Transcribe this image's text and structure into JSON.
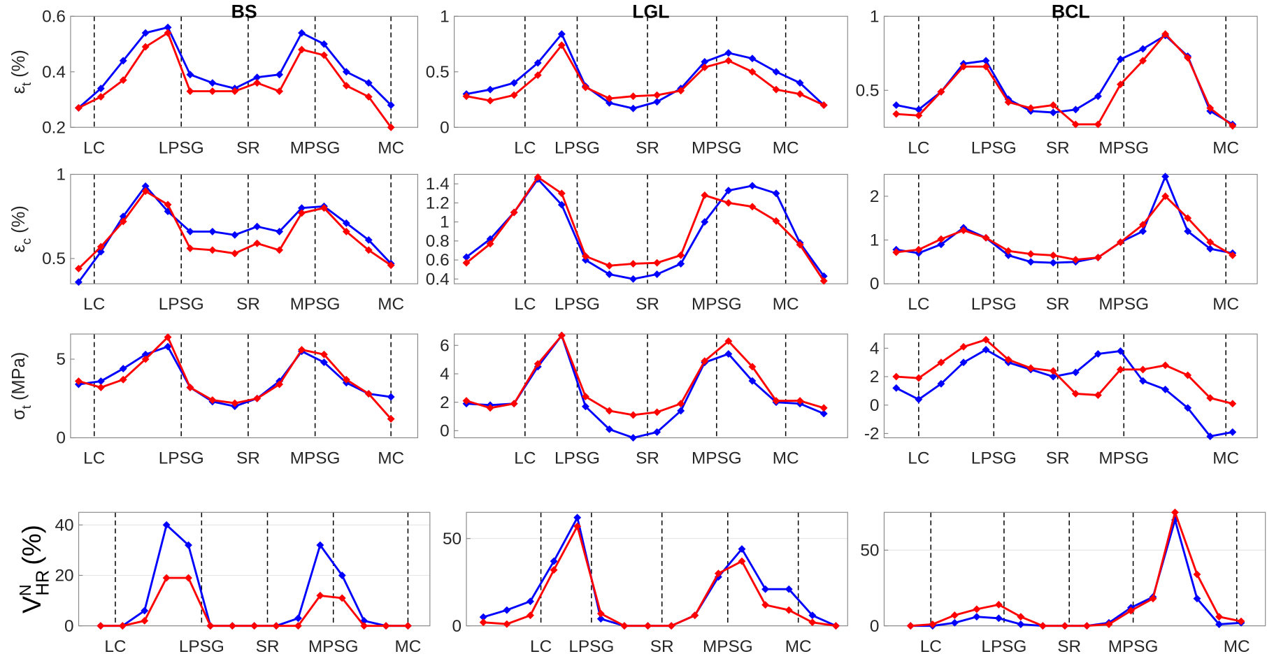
{
  "chart_data": [
    {
      "type": "line",
      "title": "BS",
      "ylabel": {
        "base": "ε",
        "sub": "t",
        "unit": "(%)"
      },
      "x": [
        1,
        2,
        3,
        4,
        5,
        6,
        7,
        8,
        9,
        10,
        11,
        12,
        13,
        14,
        15
      ],
      "xlim": [
        0.64,
        16.2
      ],
      "xticks": [
        {
          "value": 1.7,
          "label": "LC"
        },
        {
          "value": 5.6,
          "label": "LPSG"
        },
        {
          "value": 8.6,
          "label": "SR"
        },
        {
          "value": 11.6,
          "label": "MPSG"
        },
        {
          "value": 15,
          "label": "MC"
        }
      ],
      "ylim": [
        0.2,
        0.6
      ],
      "yticks": [
        0.2,
        0.4,
        0.6
      ],
      "grid": false,
      "series": [
        {
          "color": "#0000ff",
          "values": [
            0.27,
            0.34,
            0.44,
            0.54,
            0.56,
            0.39,
            0.36,
            0.34,
            0.38,
            0.39,
            0.54,
            0.5,
            0.4,
            0.36,
            0.28
          ]
        },
        {
          "color": "#ff0000",
          "values": [
            0.27,
            0.31,
            0.37,
            0.49,
            0.54,
            0.33,
            0.33,
            0.33,
            0.36,
            0.33,
            0.48,
            0.46,
            0.35,
            0.31,
            0.2
          ]
        }
      ]
    },
    {
      "type": "line",
      "title": "LGL",
      "x": [
        1,
        2,
        3,
        4,
        5,
        6,
        7,
        8,
        9,
        10,
        11,
        12,
        13,
        14,
        15,
        16
      ],
      "xlim": [
        0.49,
        17
      ],
      "xticks": [
        {
          "value": 3.46,
          "label": "LC"
        },
        {
          "value": 5.65,
          "label": "LPSG"
        },
        {
          "value": 8.6,
          "label": "SR"
        },
        {
          "value": 11.5,
          "label": "MPSG"
        },
        {
          "value": 14.4,
          "label": "MC"
        }
      ],
      "ylim": [
        0,
        1
      ],
      "yticks": [
        0,
        0.5,
        1
      ],
      "grid": false,
      "series": [
        {
          "color": "#0000ff",
          "values": [
            0.3,
            0.34,
            0.4,
            0.58,
            0.84,
            0.37,
            0.22,
            0.17,
            0.23,
            0.35,
            0.59,
            0.67,
            0.62,
            0.5,
            0.4,
            0.2
          ]
        },
        {
          "color": "#ff0000",
          "values": [
            0.28,
            0.24,
            0.29,
            0.47,
            0.74,
            0.36,
            0.26,
            0.28,
            0.29,
            0.33,
            0.54,
            0.6,
            0.5,
            0.34,
            0.3,
            0.2
          ]
        }
      ]
    },
    {
      "type": "line",
      "title": "BCL",
      "x": [
        1,
        2,
        3,
        4,
        5,
        6,
        7,
        8,
        9,
        10,
        11,
        12,
        13,
        14,
        15,
        16
      ],
      "xlim": [
        0.46,
        17.1
      ],
      "xticks": [
        {
          "value": 2,
          "label": "LC"
        },
        {
          "value": 5.35,
          "label": "LPSG"
        },
        {
          "value": 8.2,
          "label": "SR"
        },
        {
          "value": 11.15,
          "label": "MPSG"
        },
        {
          "value": 15.7,
          "label": "MC"
        }
      ],
      "ylim": [
        0.25,
        1
      ],
      "yticks": [
        0.5,
        1
      ],
      "grid": false,
      "series": [
        {
          "color": "#0000ff",
          "values": [
            0.4,
            0.37,
            0.49,
            0.68,
            0.7,
            0.44,
            0.36,
            0.35,
            0.37,
            0.46,
            0.71,
            0.78,
            0.87,
            0.73,
            0.36,
            0.27
          ]
        },
        {
          "color": "#ff0000",
          "values": [
            0.34,
            0.33,
            0.49,
            0.66,
            0.66,
            0.42,
            0.38,
            0.4,
            0.27,
            0.27,
            0.54,
            0.7,
            0.88,
            0.72,
            0.38,
            0.26
          ]
        }
      ]
    },
    {
      "type": "line",
      "ylabel": {
        "base": "ε",
        "sub": "c",
        "unit": "(%)"
      },
      "x": [
        1,
        2,
        3,
        4,
        5,
        6,
        7,
        8,
        9,
        10,
        11,
        12,
        13,
        14,
        15
      ],
      "xlim": [
        0.64,
        16.2
      ],
      "xticks": [
        {
          "value": 1.7,
          "label": "LC"
        },
        {
          "value": 5.6,
          "label": "LPSG"
        },
        {
          "value": 8.6,
          "label": "SR"
        },
        {
          "value": 11.6,
          "label": "MPSG"
        },
        {
          "value": 15,
          "label": "MC"
        }
      ],
      "ylim": [
        0.35,
        1
      ],
      "yticks": [
        0.5,
        1
      ],
      "grid": false,
      "series": [
        {
          "color": "#0000ff",
          "values": [
            0.36,
            0.54,
            0.75,
            0.93,
            0.78,
            0.66,
            0.66,
            0.64,
            0.69,
            0.66,
            0.8,
            0.81,
            0.71,
            0.61,
            0.47
          ]
        },
        {
          "color": "#ff0000",
          "values": [
            0.44,
            0.57,
            0.72,
            0.9,
            0.82,
            0.56,
            0.55,
            0.53,
            0.59,
            0.55,
            0.77,
            0.8,
            0.66,
            0.55,
            0.46
          ]
        }
      ]
    },
    {
      "type": "line",
      "x": [
        1,
        2,
        3,
        4,
        5,
        6,
        7,
        8,
        9,
        10,
        11,
        12,
        13,
        14,
        15,
        16
      ],
      "xlim": [
        0.49,
        17
      ],
      "xticks": [
        {
          "value": 3.46,
          "label": "LC"
        },
        {
          "value": 5.65,
          "label": "LPSG"
        },
        {
          "value": 8.6,
          "label": "SR"
        },
        {
          "value": 11.5,
          "label": "MPSG"
        },
        {
          "value": 14.4,
          "label": "MC"
        }
      ],
      "ylim": [
        0.35,
        1.5
      ],
      "yticks": [
        0.4,
        0.6,
        0.8,
        1,
        1.2,
        1.4
      ],
      "grid": false,
      "series": [
        {
          "color": "#0000ff",
          "values": [
            0.63,
            0.82,
            1.1,
            1.45,
            1.18,
            0.6,
            0.45,
            0.4,
            0.45,
            0.56,
            1,
            1.33,
            1.38,
            1.3,
            0.78,
            0.43
          ]
        },
        {
          "color": "#ff0000",
          "values": [
            0.57,
            0.77,
            1.1,
            1.47,
            1.3,
            0.64,
            0.54,
            0.56,
            0.57,
            0.65,
            1.28,
            1.2,
            1.16,
            1.01,
            0.76,
            0.38
          ]
        }
      ]
    },
    {
      "type": "line",
      "x": [
        1,
        2,
        3,
        4,
        5,
        6,
        7,
        8,
        9,
        10,
        11,
        12,
        13,
        14,
        15,
        16
      ],
      "xlim": [
        0.46,
        17.1
      ],
      "xticks": [
        {
          "value": 2,
          "label": "LC"
        },
        {
          "value": 5.35,
          "label": "LPSG"
        },
        {
          "value": 8.2,
          "label": "SR"
        },
        {
          "value": 11.15,
          "label": "MPSG"
        },
        {
          "value": 15.7,
          "label": "MC"
        }
      ],
      "ylim": [
        0,
        2.5
      ],
      "yticks": [
        0,
        1,
        2
      ],
      "grid": false,
      "series": [
        {
          "color": "#0000ff",
          "values": [
            0.78,
            0.7,
            0.9,
            1.28,
            1.05,
            0.65,
            0.5,
            0.48,
            0.5,
            0.6,
            0.95,
            1.2,
            2.45,
            1.2,
            0.8,
            0.7
          ]
        },
        {
          "color": "#ff0000",
          "values": [
            0.72,
            0.78,
            1.02,
            1.22,
            1.05,
            0.75,
            0.68,
            0.65,
            0.55,
            0.6,
            0.95,
            1.35,
            2,
            1.5,
            0.95,
            0.65
          ]
        }
      ]
    },
    {
      "type": "line",
      "ylabel": {
        "base": "σ",
        "sub": "t",
        "unit": "(MPa)"
      },
      "x": [
        1,
        2,
        3,
        4,
        5,
        6,
        7,
        8,
        9,
        10,
        11,
        12,
        13,
        14,
        15
      ],
      "xlim": [
        0.64,
        16.2
      ],
      "xticks": [
        {
          "value": 1.7,
          "label": "LC"
        },
        {
          "value": 5.6,
          "label": "LPSG"
        },
        {
          "value": 8.6,
          "label": "SR"
        },
        {
          "value": 11.6,
          "label": "MPSG"
        },
        {
          "value": 15,
          "label": "MC"
        }
      ],
      "ylim": [
        0,
        6.6
      ],
      "yticks": [
        0,
        5
      ],
      "grid": false,
      "series": [
        {
          "color": "#0000ff",
          "values": [
            3.4,
            3.6,
            4.4,
            5.3,
            5.8,
            3.2,
            2.3,
            2,
            2.5,
            3.6,
            5.5,
            4.8,
            3.5,
            2.8,
            2.6
          ]
        },
        {
          "color": "#ff0000",
          "values": [
            3.6,
            3.2,
            3.7,
            5,
            6.4,
            3.2,
            2.4,
            2.2,
            2.5,
            3.4,
            5.6,
            5.3,
            3.7,
            2.8,
            1.2
          ]
        }
      ]
    },
    {
      "type": "line",
      "x": [
        1,
        2,
        3,
        4,
        5,
        6,
        7,
        8,
        9,
        10,
        11,
        12,
        13,
        14,
        15,
        16
      ],
      "xlim": [
        0.49,
        17
      ],
      "xticks": [
        {
          "value": 3.46,
          "label": "LC"
        },
        {
          "value": 5.65,
          "label": "LPSG"
        },
        {
          "value": 8.6,
          "label": "SR"
        },
        {
          "value": 11.5,
          "label": "MPSG"
        },
        {
          "value": 14.4,
          "label": "MC"
        }
      ],
      "ylim": [
        -0.5,
        6.8
      ],
      "yticks": [
        0,
        2,
        4,
        6
      ],
      "grid": false,
      "series": [
        {
          "color": "#0000ff",
          "values": [
            1.9,
            1.8,
            1.9,
            4.5,
            6.7,
            1.7,
            0.1,
            -0.5,
            -0.1,
            1.4,
            4.8,
            5.4,
            3.5,
            2,
            1.9,
            1.2
          ]
        },
        {
          "color": "#ff0000",
          "values": [
            2.1,
            1.6,
            1.9,
            4.7,
            6.7,
            2.4,
            1.4,
            1.1,
            1.3,
            1.9,
            4.9,
            6.3,
            4.5,
            2.1,
            2.1,
            1.6
          ]
        }
      ]
    },
    {
      "type": "line",
      "x": [
        1,
        2,
        3,
        4,
        5,
        6,
        7,
        8,
        9,
        10,
        11,
        12,
        13,
        14,
        15,
        16
      ],
      "xlim": [
        0.46,
        17.1
      ],
      "xticks": [
        {
          "value": 2,
          "label": "LC"
        },
        {
          "value": 5.35,
          "label": "LPSG"
        },
        {
          "value": 8.2,
          "label": "SR"
        },
        {
          "value": 11.15,
          "label": "MPSG"
        },
        {
          "value": 15.7,
          "label": "MC"
        }
      ],
      "ylim": [
        -2.3,
        5
      ],
      "yticks": [
        -2,
        0,
        2,
        4
      ],
      "grid": false,
      "series": [
        {
          "color": "#0000ff",
          "values": [
            1.2,
            0.4,
            1.5,
            3,
            3.9,
            3,
            2.5,
            2,
            2.3,
            3.6,
            3.8,
            1.7,
            1.1,
            -0.2,
            -2.2,
            -1.9
          ]
        },
        {
          "color": "#ff0000",
          "values": [
            2,
            1.9,
            3,
            4.1,
            4.6,
            3.2,
            2.6,
            2.4,
            0.8,
            0.7,
            2.5,
            2.5,
            2.8,
            2.1,
            0.5,
            0.1
          ]
        }
      ]
    },
    {
      "type": "line",
      "ylabel": {
        "base": "V",
        "sup": "N",
        "sub": "HR",
        "unit": "(%)"
      },
      "x": [
        1,
        2,
        3,
        4,
        5,
        6,
        7,
        8,
        9,
        10,
        11,
        12,
        13,
        14,
        15
      ],
      "xlim": [
        0,
        16
      ],
      "xticks": [
        {
          "value": 1.67,
          "label": "LC"
        },
        {
          "value": 5.6,
          "label": "LPSG"
        },
        {
          "value": 8.6,
          "label": "SR"
        },
        {
          "value": 11.6,
          "label": "MPSG"
        },
        {
          "value": 15,
          "label": "MC"
        }
      ],
      "ylim": [
        0,
        45
      ],
      "yticks": [
        0,
        20,
        40
      ],
      "grid": true,
      "series": [
        {
          "color": "#0000ff",
          "values": [
            0,
            0,
            6,
            40,
            32,
            0,
            0,
            0,
            0,
            3,
            32,
            20,
            2,
            0,
            0
          ]
        },
        {
          "color": "#ff0000",
          "values": [
            0,
            0,
            2,
            19,
            19,
            0,
            0,
            0,
            0,
            0,
            12,
            11,
            0,
            0,
            0
          ]
        }
      ]
    },
    {
      "type": "line",
      "x": [
        1,
        2,
        3,
        4,
        5,
        6,
        7,
        8,
        9,
        10,
        11,
        12,
        13,
        14,
        15,
        16
      ],
      "xlim": [
        0.28,
        16.5
      ],
      "xticks": [
        {
          "value": 3.45,
          "label": "LC"
        },
        {
          "value": 5.6,
          "label": "LPSG"
        },
        {
          "value": 8.6,
          "label": "SR"
        },
        {
          "value": 11.4,
          "label": "MPSG"
        },
        {
          "value": 14.4,
          "label": "MC"
        }
      ],
      "ylim": [
        0,
        65
      ],
      "yticks": [
        0,
        50
      ],
      "grid": true,
      "series": [
        {
          "color": "#0000ff",
          "values": [
            5,
            9,
            14,
            37,
            62,
            4,
            0,
            0,
            0,
            6,
            28,
            44,
            21,
            21,
            6,
            0
          ]
        },
        {
          "color": "#ff0000",
          "values": [
            2,
            1,
            6,
            32,
            57,
            7,
            0,
            0,
            0,
            6,
            30,
            37,
            12,
            9,
            2,
            0
          ]
        }
      ]
    },
    {
      "type": "line",
      "x": [
        1,
        2,
        3,
        4,
        5,
        6,
        7,
        8,
        9,
        10,
        11,
        12,
        13,
        14,
        15,
        16
      ],
      "xlim": [
        -0.2,
        17.1
      ],
      "xticks": [
        {
          "value": 1.92,
          "label": "LC"
        },
        {
          "value": 5.24,
          "label": "LPSG"
        },
        {
          "value": 8.2,
          "label": "SR"
        },
        {
          "value": 11.1,
          "label": "MPSG"
        },
        {
          "value": 15.8,
          "label": "MC"
        }
      ],
      "ylim": [
        0,
        75
      ],
      "yticks": [
        0,
        50
      ],
      "grid": true,
      "series": [
        {
          "color": "#0000ff",
          "values": [
            0,
            0,
            2,
            6,
            5,
            1,
            0,
            0,
            0,
            2,
            12,
            19,
            70,
            18,
            1,
            2
          ]
        },
        {
          "color": "#ff0000",
          "values": [
            0,
            1,
            7,
            11,
            14,
            6,
            0,
            0,
            0,
            1,
            10,
            18,
            75,
            34,
            6,
            3
          ]
        }
      ]
    }
  ]
}
